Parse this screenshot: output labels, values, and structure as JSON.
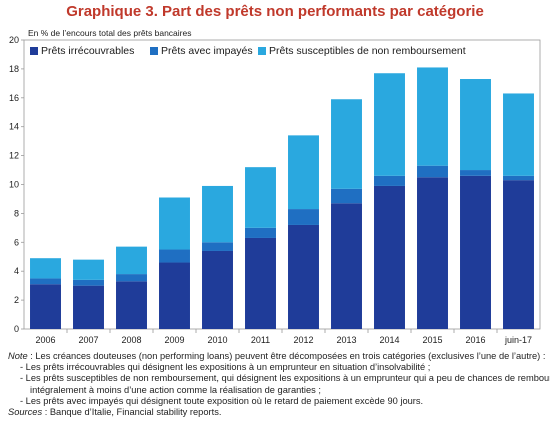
{
  "chart_data": {
    "type": "bar",
    "stacked": true,
    "title": "Graphique 3. Part des prêts non performants par catégorie",
    "subtitle": "En % de l’encours total des prêts bancaires",
    "categories": [
      "2006",
      "2007",
      "2008",
      "2009",
      "2010",
      "2011",
      "2012",
      "2013",
      "2014",
      "2015",
      "2016",
      "juin-17"
    ],
    "ylim": [
      0,
      20
    ],
    "yticks": [
      0,
      2,
      4,
      6,
      8,
      10,
      12,
      14,
      16,
      18,
      20
    ],
    "grid": false,
    "legend_position": "top-left",
    "series": [
      {
        "name": "Prêts irrécouvrables",
        "color": "#1f3c99",
        "values": [
          3.1,
          3.0,
          3.3,
          4.6,
          5.4,
          6.3,
          7.2,
          8.7,
          9.9,
          10.5,
          10.6,
          10.3
        ]
      },
      {
        "name": "Prêts avec impayés",
        "color": "#1f6fc2",
        "values": [
          0.4,
          0.4,
          0.5,
          0.9,
          0.6,
          0.7,
          1.1,
          1.0,
          0.7,
          0.8,
          0.4,
          0.3
        ]
      },
      {
        "name": "Prêts susceptibles de non remboursement",
        "color": "#2aa8df",
        "values": [
          1.4,
          1.4,
          1.9,
          3.6,
          3.9,
          4.2,
          5.1,
          6.2,
          7.1,
          6.8,
          6.3,
          5.7
        ]
      }
    ]
  },
  "notes": {
    "note_label": "Note",
    "note_text": " : Les créances douteuses (non performing loans) peuvent être décomposées en trois catégories (exclusives l’une de l’autre) :",
    "bullet1": "- Les prêts irrécouvrables qui désignent les expositions à un emprunteur en situation d’insolvabilité ;",
    "bullet2a": "- Les prêts susceptibles de non remboursement, qui désignent les expositions à un emprunteur qui a peu de chances de rembourser",
    "bullet2b": "intégralement à moins d’une action comme la réalisation de garanties ;",
    "bullet3": "- Les prêts avec impayés qui désignent toute exposition où le retard de paiement excède 90 jours.",
    "sources_label": "Sources",
    "sources_text": " : Banque d’Italie, Financial stability reports."
  }
}
